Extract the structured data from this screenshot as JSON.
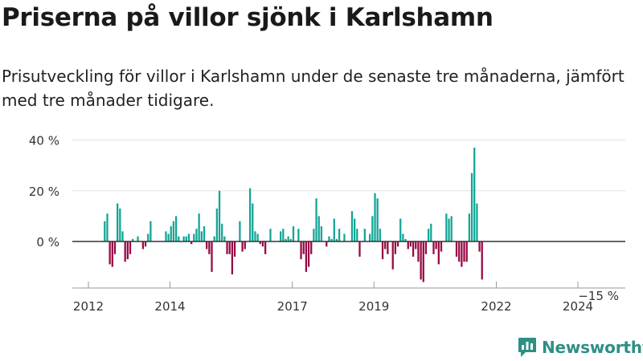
{
  "header": {
    "title": "Priserna på villor sjönk i Karlshamn",
    "subtitle": "Prisutveckling för villor i Karlshamn under de senaste tre månaderna, jämfört med tre månader tidigare."
  },
  "footer": {
    "brand_name": "Newsworthy",
    "brand_icon": "bar-chart-logo-icon"
  },
  "colors": {
    "positive": "#12a596",
    "negative": "#960a45",
    "zero_line": "#333333",
    "grid": "#e0e0e0",
    "text": "#333333"
  },
  "chart_data": {
    "type": "bar",
    "title": "",
    "xlabel": "",
    "ylabel": "",
    "ylim": [
      -18,
      42
    ],
    "yticks": [
      0,
      20,
      40
    ],
    "ytick_labels": [
      "0 %",
      "20 %",
      "40 %"
    ],
    "xticks": [
      2012,
      2014,
      2017,
      2019,
      2022,
      2024
    ],
    "xlim": [
      2012.0,
      2025.2
    ],
    "grid": true,
    "x_start": 2012.4,
    "x_step": 0.0625,
    "last_value_label": "−15 %",
    "values": [
      8,
      11,
      -9,
      -10,
      -5,
      15,
      13,
      4,
      -8,
      -7,
      -5,
      1,
      0,
      2,
      0,
      -3,
      -2,
      3,
      8,
      0,
      0,
      0,
      0,
      0,
      4,
      3,
      6,
      8,
      10,
      2,
      0,
      2,
      2,
      3,
      -1,
      3,
      5,
      11,
      4,
      6,
      -3,
      -5,
      -12,
      2,
      13,
      20,
      7,
      2,
      -5,
      -5,
      -13,
      -6,
      0,
      8,
      -4,
      -3,
      0,
      21,
      15,
      4,
      3,
      -1,
      -2,
      -5,
      0,
      5,
      0,
      0,
      0,
      4,
      5,
      1,
      2,
      1,
      6,
      0,
      5,
      -7,
      -5,
      -12,
      -10,
      -5,
      5,
      17,
      10,
      6,
      0,
      -2,
      2,
      1,
      9,
      1,
      5,
      0,
      3,
      0,
      0,
      12,
      9,
      5,
      -6,
      0,
      5,
      0,
      3,
      10,
      19,
      17,
      5,
      -7,
      -3,
      -5,
      0,
      -11,
      -5,
      -2,
      9,
      3,
      1,
      -3,
      -2,
      -6,
      -3,
      -8,
      -15,
      -16,
      -5,
      5,
      7,
      -5,
      -3,
      -9,
      -4,
      0,
      11,
      9,
      10,
      0,
      -6,
      -8,
      -10,
      -8,
      -8,
      11,
      27,
      37,
      15,
      -4,
      -15
    ]
  }
}
